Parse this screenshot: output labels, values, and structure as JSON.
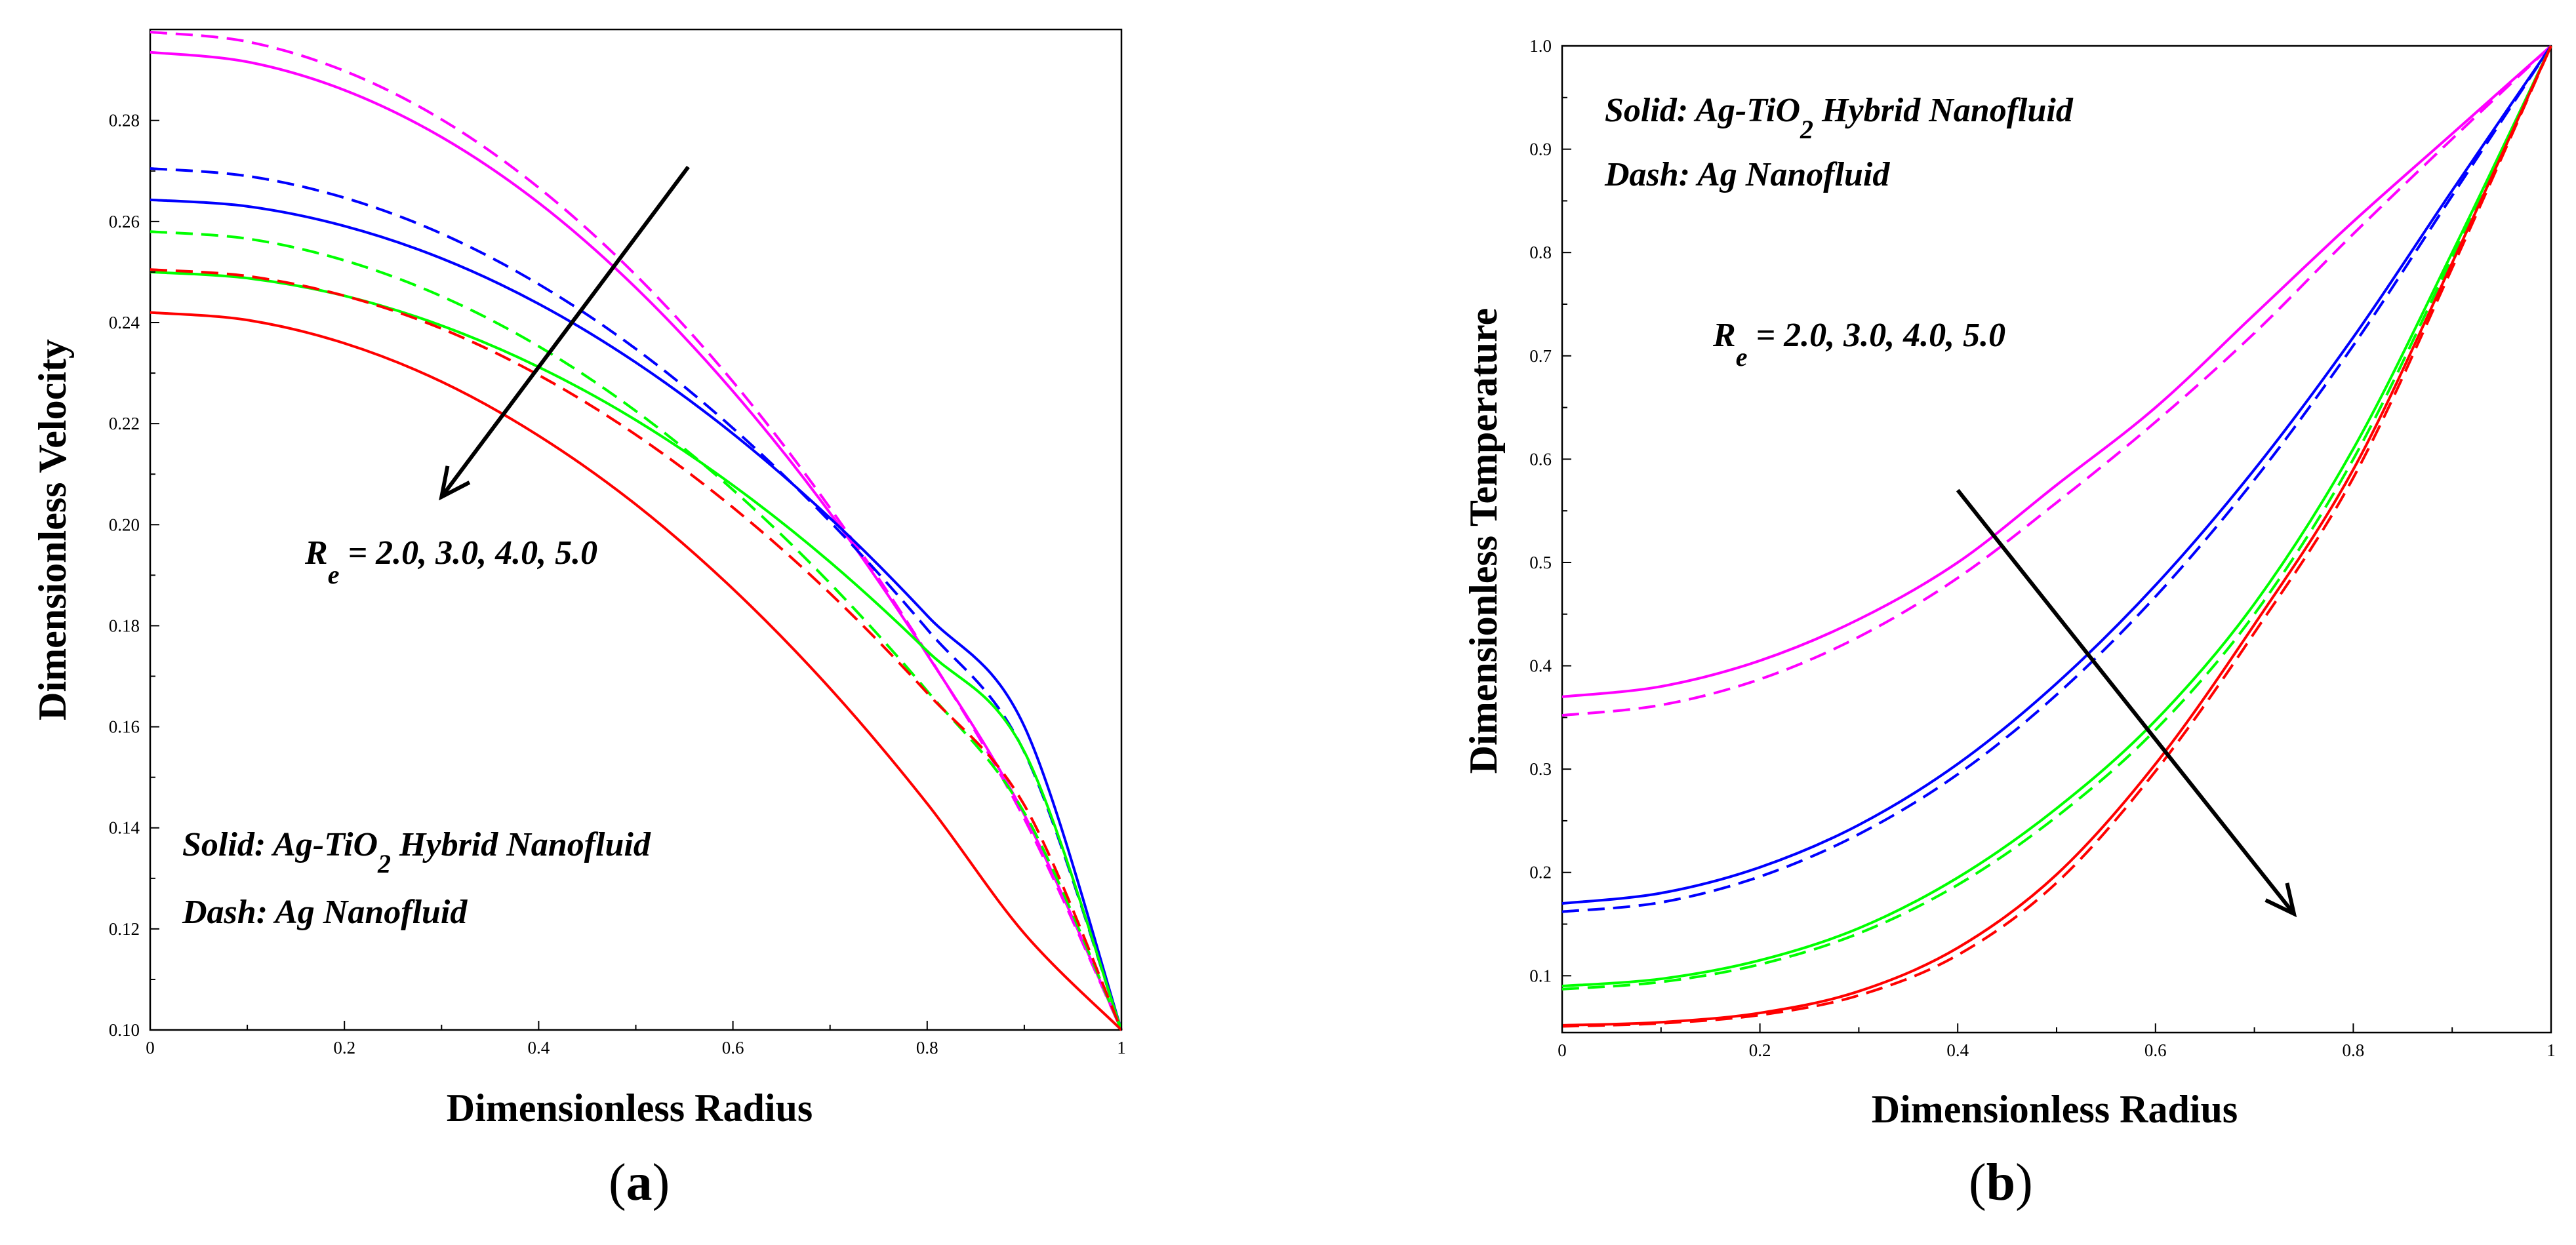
{
  "figure": {
    "panels": [
      {
        "id": "a",
        "caption_open": "(",
        "caption_letter": "a",
        "caption_close": ")"
      },
      {
        "id": "b",
        "caption_open": "(",
        "caption_letter": "b",
        "caption_close": ")"
      }
    ]
  },
  "chart_data": [
    {
      "type": "line",
      "panel": "a",
      "xlabel": "Dimensionless Radius",
      "ylabel": "Dimensionless Velocity",
      "xlim": [
        0,
        1
      ],
      "ylim": [
        0.1,
        0.298
      ],
      "x_ticks": [
        0,
        0.2,
        0.4,
        0.6,
        0.8,
        1
      ],
      "x_tick_labels": [
        "0",
        "0.2",
        "0.4",
        "0.6",
        "0.8",
        "1"
      ],
      "y_ticks": [
        0.1,
        0.12,
        0.14,
        0.16,
        0.18,
        0.2,
        0.22,
        0.24,
        0.26,
        0.28
      ],
      "y_tick_labels": [
        "0.10",
        "0.12",
        "0.14",
        "0.16",
        "0.18",
        "0.20",
        "0.22",
        "0.24",
        "0.26",
        "0.28"
      ],
      "x": [
        0,
        0.1,
        0.2,
        0.3,
        0.4,
        0.5,
        0.6,
        0.7,
        0.8,
        0.9,
        1.0
      ],
      "series": [
        {
          "name": "Ag-TiO2 Hybrid Nanofluid, Re=2.0",
          "color": "#ff00ff",
          "dash": "solid",
          "values": [
            0.2935,
            0.2916,
            0.286,
            0.2767,
            0.2637,
            0.2469,
            0.2264,
            0.2023,
            0.1743,
            0.1426,
            0.1
          ]
        },
        {
          "name": "Ag Nanofluid, Re=2.0",
          "color": "#ff00ff",
          "dash": "dashed",
          "values": [
            0.2975,
            0.2956,
            0.2898,
            0.2802,
            0.2667,
            0.2494,
            0.2283,
            0.2033,
            0.1745,
            0.1418,
            0.1
          ]
        },
        {
          "name": "Ag-TiO2 Hybrid Nanofluid, Re=3.0",
          "color": "#0000ff",
          "dash": "solid",
          "values": [
            0.2643,
            0.263,
            0.2591,
            0.2527,
            0.2437,
            0.2321,
            0.218,
            0.2013,
            0.182,
            0.1601,
            0.1
          ]
        },
        {
          "name": "Ag Nanofluid, Re=3.0",
          "color": "#0000ff",
          "dash": "dashed",
          "values": [
            0.2705,
            0.269,
            0.2647,
            0.2576,
            0.2476,
            0.2348,
            0.2191,
            0.2006,
            0.1793,
            0.155,
            0.1
          ]
        },
        {
          "name": "Ag-TiO2 Hybrid Nanofluid, Re=4.0",
          "color": "#00ff00",
          "dash": "solid",
          "values": [
            0.25,
            0.2488,
            0.2453,
            0.2394,
            0.2312,
            0.2207,
            0.2078,
            0.1926,
            0.175,
            0.1551,
            0.1
          ]
        },
        {
          "name": "Ag Nanofluid, Re=4.0",
          "color": "#00ff00",
          "dash": "dashed",
          "values": [
            0.258,
            0.2566,
            0.2523,
            0.2452,
            0.2353,
            0.2225,
            0.2069,
            0.1884,
            0.1671,
            0.143,
            0.1
          ]
        },
        {
          "name": "Ag-TiO2 Hybrid Nanofluid, Re=5.0",
          "color": "#ff0000",
          "dash": "solid",
          "values": [
            0.242,
            0.2405,
            0.2359,
            0.2283,
            0.2176,
            0.204,
            0.1873,
            0.1676,
            0.1448,
            0.1191,
            0.1
          ]
        },
        {
          "name": "Ag Nanofluid, Re=5.0",
          "color": "#ff0000",
          "dash": "dashed",
          "values": [
            0.2505,
            0.2492,
            0.2453,
            0.2388,
            0.2296,
            0.2178,
            0.2034,
            0.1864,
            0.1667,
            0.1445,
            0.1
          ]
        }
      ],
      "annotations": {
        "re_label": {
          "R": "R",
          "sub": "e",
          "rest": " = 2.0, 3.0, 4.0, 5.0"
        },
        "legend_solid": {
          "pre": "Solid: Ag-TiO",
          "sub": "2",
          "post": " Hybrid Nanofluid"
        },
        "legend_dash": "Dash: Ag Nanofluid",
        "arrow": {
          "from": [
            0.554,
            0.2708
          ],
          "to": [
            0.3,
            0.2055
          ]
        }
      }
    },
    {
      "type": "line",
      "panel": "b",
      "xlabel": "Dimensionless Radius",
      "ylabel": "Dimensionless Temperature",
      "xlim": [
        0,
        1
      ],
      "ylim": [
        0.045,
        1.0
      ],
      "x_ticks": [
        0,
        0.2,
        0.4,
        0.6,
        0.8,
        1
      ],
      "x_tick_labels": [
        "0",
        "0.2",
        "0.4",
        "0.6",
        "0.8",
        "1"
      ],
      "y_ticks": [
        0.1,
        0.2,
        0.3,
        0.4,
        0.5,
        0.6,
        0.7,
        0.8,
        0.9,
        1.0
      ],
      "y_tick_labels": [
        "0.1",
        "0.2",
        "0.3",
        "0.4",
        "0.5",
        "0.6",
        "0.7",
        "0.8",
        "0.9",
        "1.0"
      ],
      "x": [
        0,
        0.1,
        0.2,
        0.3,
        0.4,
        0.5,
        0.6,
        0.7,
        0.8,
        0.9,
        1.0
      ],
      "series": [
        {
          "name": "Ag-TiO2 Hybrid Nanofluid, Re=2.0",
          "color": "#ff00ff",
          "dash": "solid",
          "values": [
            0.37,
            0.38,
            0.405,
            0.445,
            0.5,
            0.575,
            0.65,
            0.74,
            0.83,
            0.915,
            1.0
          ]
        },
        {
          "name": "Ag Nanofluid, Re=2.0",
          "color": "#ff00ff",
          "dash": "dashed",
          "values": [
            0.352,
            0.362,
            0.387,
            0.428,
            0.485,
            0.558,
            0.636,
            0.722,
            0.818,
            0.91,
            1.0
          ]
        },
        {
          "name": "Ag-TiO2 Hybrid Nanofluid, Re=3.0",
          "color": "#0000ff",
          "dash": "solid",
          "values": [
            0.17,
            0.18,
            0.205,
            0.246,
            0.305,
            0.383,
            0.478,
            0.59,
            0.718,
            0.86,
            1.0
          ]
        },
        {
          "name": "Ag Nanofluid, Re=3.0",
          "color": "#0000ff",
          "dash": "dashed",
          "values": [
            0.162,
            0.171,
            0.196,
            0.237,
            0.295,
            0.372,
            0.467,
            0.58,
            0.71,
            0.855,
            1.0
          ]
        },
        {
          "name": "Ag-TiO2 Hybrid Nanofluid, Re=4.0",
          "color": "#00ff00",
          "dash": "solid",
          "values": [
            0.09,
            0.097,
            0.115,
            0.146,
            0.195,
            0.262,
            0.347,
            0.46,
            0.61,
            0.8,
            1.0
          ]
        },
        {
          "name": "Ag Nanofluid, Re=4.0",
          "color": "#00ff00",
          "dash": "dashed",
          "values": [
            0.087,
            0.094,
            0.111,
            0.141,
            0.188,
            0.254,
            0.338,
            0.45,
            0.6,
            0.795,
            1.0
          ]
        },
        {
          "name": "Ag-TiO2 Hybrid Nanofluid, Re=5.0",
          "color": "#ff0000",
          "dash": "solid",
          "values": [
            0.052,
            0.055,
            0.064,
            0.085,
            0.127,
            0.198,
            0.305,
            0.44,
            0.59,
            0.79,
            1.0
          ]
        },
        {
          "name": "Ag Nanofluid, Re=5.0",
          "color": "#ff0000",
          "dash": "dashed",
          "values": [
            0.051,
            0.054,
            0.062,
            0.081,
            0.12,
            0.19,
            0.298,
            0.432,
            0.582,
            0.785,
            1.0
          ]
        }
      ],
      "annotations": {
        "re_label": {
          "R": "R",
          "sub": "e",
          "rest": " = 2.0, 3.0, 4.0, 5.0"
        },
        "legend_solid": {
          "pre": "Solid: Ag-TiO",
          "sub": "2",
          "post": " Hybrid Nanofluid"
        },
        "legend_dash": "Dash: Ag Nanofluid",
        "arrow": {
          "from": [
            0.4,
            0.57
          ],
          "to": [
            0.74,
            0.16
          ]
        }
      }
    }
  ]
}
